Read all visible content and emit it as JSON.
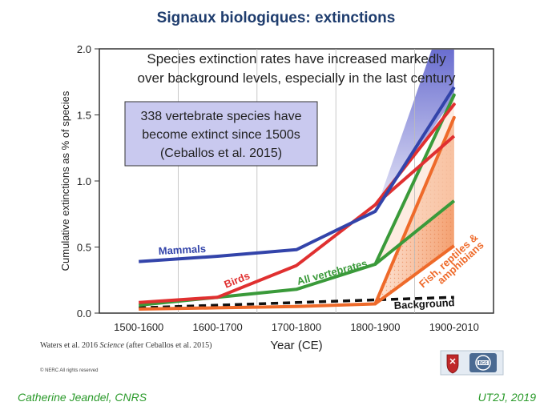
{
  "slide": {
    "title": "Signaux biologiques: extinctions",
    "author": "Catherine Jeandel, CNRS",
    "venue": "UT2J, 2019"
  },
  "chart_data": {
    "type": "line",
    "title": "Species extinction rates have increased markedly over background levels, especially in the last century",
    "title_lines": [
      "Species extinction rates have increased markedly",
      "over background levels, especially in the last century"
    ],
    "callout_lines": [
      "338 vertebrate species have",
      "become extinct since 1500s",
      "(Ceballos et al. 2015)"
    ],
    "xlabel": "Year (CE)",
    "ylabel": "Cumulative extinctions as % of species",
    "categories": [
      "1500-1600",
      "1600-1700",
      "1700-1800",
      "1800-1900",
      "1900-2010"
    ],
    "yticks": [
      "0.0",
      "0.5",
      "1.0",
      "1.5",
      "2.0"
    ],
    "ylim": [
      0,
      2.0
    ],
    "series": [
      {
        "name": "Mammals",
        "color": "#3344aa",
        "values": [
          0.39,
          0.43,
          0.48,
          0.77,
          1.71
        ]
      },
      {
        "name": "Birds",
        "color": "#e03030",
        "values": [
          0.08,
          0.12,
          0.36,
          0.82,
          1.34
        ],
        "values_upper": [
          null,
          null,
          null,
          0.82,
          1.58
        ]
      },
      {
        "name": "All vertebrates",
        "color": "#3a9a3a",
        "values": [
          0.06,
          0.12,
          0.18,
          0.37,
          0.85
        ],
        "values_upper": [
          null,
          null,
          null,
          0.37,
          1.65
        ]
      },
      {
        "name": "Fish, reptiles & amphibians",
        "color": "#ee6a2a",
        "values": [
          0.03,
          0.04,
          0.05,
          0.07,
          0.51
        ],
        "values_upper": [
          null,
          null,
          null,
          0.07,
          1.48
        ]
      },
      {
        "name": "Background",
        "color": "#111111",
        "dashed": true,
        "values": [
          0.04,
          0.06,
          0.08,
          0.1,
          0.12
        ]
      }
    ],
    "source": {
      "prefix": "Waters et al. 2016 ",
      "journal": "Science",
      "suffix": " (after Ceballos et al. 2015)"
    },
    "copyright": "© NERC All rights reserved"
  }
}
